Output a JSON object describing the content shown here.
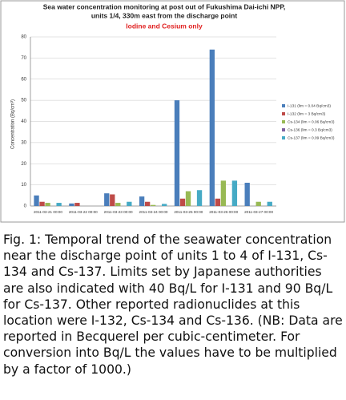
{
  "chart_data": {
    "type": "bar",
    "title": "Sea water concentration monitoring at post out of Fukushima Dai-ichi NPP,",
    "subtitle": "units 1/4, 330m east from the discharge point",
    "annotation": "Iodine and Cesium only",
    "y_label": "Concentration (Bq/cm³)",
    "categories": [
      "2011-03-21 00:00",
      "2011-03-22 00:00",
      "2011-03-23 00:00",
      "2011-03-24 00:00",
      "2011-03-25 00:00",
      "2011-03-26 00:00",
      "2011-03-27 00:00"
    ],
    "series": [
      {
        "name": "I-131 (lim = 0.04 Bq/cm3)",
        "color": "#4a7ebb",
        "values": [
          5,
          1.2,
          6,
          4.5,
          50,
          74,
          11
        ]
      },
      {
        "name": "I-132 (lim = 3 Bq/cm3)",
        "color": "#be4b48",
        "values": [
          2,
          1.5,
          5.5,
          2,
          3.5,
          3.5,
          null
        ]
      },
      {
        "name": "Cs-134 (lim = 0.06 Bq/cm3)",
        "color": "#98b954",
        "values": [
          1.5,
          null,
          1.5,
          0.5,
          7,
          12,
          2
        ]
      },
      {
        "name": "Cs-136 (lim = 0.3 Bq/cm3)",
        "color": "#7d60a0",
        "values": [
          null,
          null,
          null,
          null,
          null,
          null,
          null
        ]
      },
      {
        "name": "Cs-137 (lim = 0.09 Bq/cm3)",
        "color": "#46aac5",
        "values": [
          1.5,
          null,
          2,
          1,
          7.5,
          12,
          2
        ]
      }
    ],
    "ylim": [
      0,
      80
    ],
    "yticks": [
      0,
      10,
      20,
      30,
      40,
      50,
      60,
      70,
      80
    ],
    "grid": true,
    "legend": "right"
  },
  "caption": "Fig. 1: Temporal trend of the seawater concentration near the discharge point of units 1 to 4 of I-131, Cs-134 and Cs-137. Limits set by Japanese authorities are also indicated with 40 Bq/L for I-131 and 90 Bq/L for Cs-137. Other reported radionuclides at this location were I-132, Cs-134 and Cs-136. (NB: Data are reported in Becquerel per cubic-centimeter. For conversion into Bq/L the values have to be multiplied by a factor of 1000.)"
}
